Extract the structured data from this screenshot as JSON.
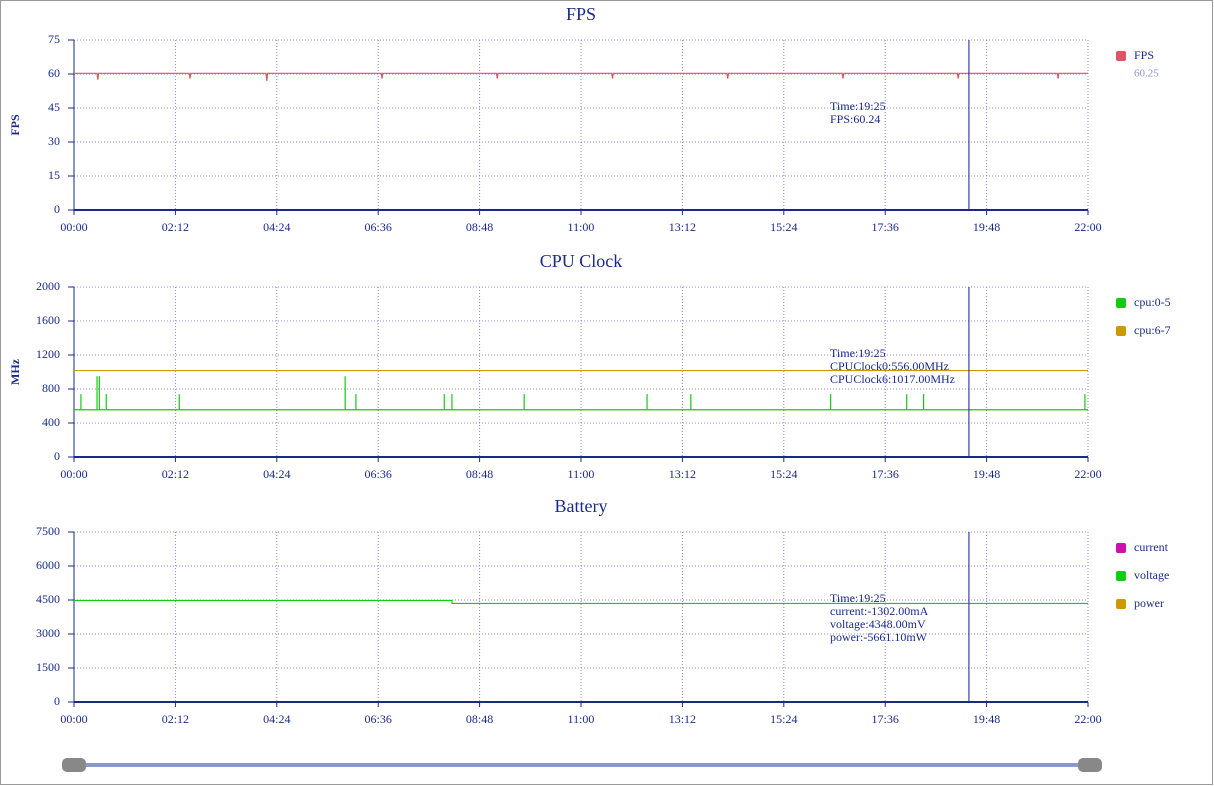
{
  "chart_data": [
    {
      "type": "line",
      "title": "FPS",
      "y_label": "FPS",
      "x": [
        0,
        30,
        31,
        32,
        150,
        151,
        152,
        250,
        251,
        252,
        400,
        401,
        402,
        550,
        551,
        552,
        700,
        701,
        702,
        850,
        851,
        852,
        1000,
        1001,
        1002,
        1150,
        1151,
        1152,
        1280,
        1281,
        1282,
        1320
      ],
      "series": [
        {
          "name": "FPS",
          "color": "#e05565",
          "values": [
            60.3,
            60.3,
            57.5,
            60.3,
            60.3,
            58,
            60.3,
            60.3,
            57,
            60.3,
            60.3,
            58,
            60.3,
            60.3,
            58,
            60.3,
            60.3,
            58,
            60.3,
            60.3,
            58,
            60.3,
            60.3,
            58,
            60.3,
            60.3,
            58,
            60.3,
            60.3,
            58,
            60.3,
            60.3
          ]
        }
      ],
      "legend_values": [
        "60.25"
      ],
      "xlim": [
        0,
        1320
      ],
      "ylim": [
        0,
        75
      ],
      "yticks": [
        0,
        15,
        30,
        45,
        60,
        75
      ],
      "xticks": [
        {
          "value": 0,
          "label": "00:00"
        },
        {
          "value": 132,
          "label": "02:12"
        },
        {
          "value": 264,
          "label": "04:24"
        },
        {
          "value": 396,
          "label": "06:36"
        },
        {
          "value": 528,
          "label": "08:48"
        },
        {
          "value": 660,
          "label": "11:00"
        },
        {
          "value": 792,
          "label": "13:12"
        },
        {
          "value": 924,
          "label": "15:24"
        },
        {
          "value": 1056,
          "label": "17:36"
        },
        {
          "value": 1188,
          "label": "19:48"
        },
        {
          "value": 1320,
          "label": "22:00"
        }
      ],
      "cursor": 1165,
      "annotations": [
        "Time:19:25",
        "FPS:60.24"
      ],
      "grid": true
    },
    {
      "type": "line",
      "title": "CPU Clock",
      "y_label": "MHz",
      "x": [
        0,
        9,
        9,
        9,
        30,
        30,
        30,
        33,
        33,
        33,
        42,
        42,
        42,
        137,
        137,
        137,
        353,
        353,
        353,
        367,
        367,
        367,
        482,
        482,
        482,
        492,
        492,
        492,
        586,
        586,
        586,
        746,
        746,
        746,
        803,
        803,
        803,
        985,
        985,
        985,
        1084,
        1084,
        1084,
        1106,
        1106,
        1106,
        1316,
        1316,
        1316,
        1320
      ],
      "series": [
        {
          "name": "cpu:0-5",
          "color": "#11cc11",
          "values": [
            556,
            556,
            740,
            556,
            556,
            950,
            556,
            556,
            950,
            556,
            556,
            740,
            556,
            556,
            740,
            556,
            556,
            950,
            556,
            556,
            740,
            556,
            556,
            740,
            556,
            556,
            740,
            556,
            556,
            740,
            556,
            556,
            740,
            556,
            556,
            740,
            556,
            556,
            740,
            556,
            556,
            740,
            556,
            556,
            740,
            556,
            556,
            740,
            556,
            556
          ]
        },
        {
          "name": "cpu:6-7",
          "color": "#cc9900",
          "values": [
            1017,
            1017,
            1017,
            1017,
            1017,
            1017,
            1017,
            1017,
            1017,
            1017,
            1017,
            1017,
            1017,
            1017,
            1017,
            1017,
            1017,
            1017,
            1017,
            1017,
            1017,
            1017,
            1017,
            1017,
            1017,
            1017,
            1017,
            1017,
            1017,
            1017,
            1017,
            1017,
            1017,
            1017,
            1017,
            1017,
            1017,
            1017,
            1017,
            1017,
            1017,
            1017,
            1017,
            1017,
            1017,
            1017,
            1017,
            1017,
            1017,
            1017
          ]
        }
      ],
      "xlim": [
        0,
        1320
      ],
      "ylim": [
        0,
        2000
      ],
      "yticks": [
        0,
        400,
        800,
        1200,
        1600,
        2000
      ],
      "xticks": [
        {
          "value": 0,
          "label": "00:00"
        },
        {
          "value": 132,
          "label": "02:12"
        },
        {
          "value": 264,
          "label": "04:24"
        },
        {
          "value": 396,
          "label": "06:36"
        },
        {
          "value": 528,
          "label": "08:48"
        },
        {
          "value": 660,
          "label": "11:00"
        },
        {
          "value": 792,
          "label": "13:12"
        },
        {
          "value": 924,
          "label": "15:24"
        },
        {
          "value": 1056,
          "label": "17:36"
        },
        {
          "value": 1188,
          "label": "19:48"
        },
        {
          "value": 1320,
          "label": "22:00"
        }
      ],
      "cursor": 1165,
      "annotations": [
        "Time:19:25",
        "CPUClock0:556.00MHz",
        "CPUClock6:1017.00MHz"
      ],
      "grid": true
    },
    {
      "type": "line",
      "title": "Battery",
      "x": [
        0,
        492,
        492,
        1320
      ],
      "series": [
        {
          "name": "current",
          "color": "#cc11aa",
          "values": [
            null,
            null,
            null,
            null
          ]
        },
        {
          "name": "voltage",
          "color": "#11cc11",
          "values": [
            4480,
            4480,
            4348,
            4348
          ]
        },
        {
          "name": "power",
          "color": "#cc9900",
          "values": [
            null,
            null,
            null,
            null
          ]
        }
      ],
      "xlim": [
        0,
        1320
      ],
      "ylim": [
        0,
        7500
      ],
      "yticks": [
        0,
        1500,
        3000,
        4500,
        6000,
        7500
      ],
      "xticks": [
        {
          "value": 0,
          "label": "00:00"
        },
        {
          "value": 132,
          "label": "02:12"
        },
        {
          "value": 264,
          "label": "04:24"
        },
        {
          "value": 396,
          "label": "06:36"
        },
        {
          "value": 528,
          "label": "08:48"
        },
        {
          "value": 660,
          "label": "11:00"
        },
        {
          "value": 792,
          "label": "13:12"
        },
        {
          "value": 924,
          "label": "15:24"
        },
        {
          "value": 1056,
          "label": "17:36"
        },
        {
          "value": 1188,
          "label": "19:48"
        },
        {
          "value": 1320,
          "label": "22:00"
        }
      ],
      "cursor": 1165,
      "annotations": [
        "Time:19:25",
        "current:-1302.00mA",
        "voltage:4348.00mV",
        "power:-5661.10mW"
      ],
      "grid": true
    }
  ]
}
